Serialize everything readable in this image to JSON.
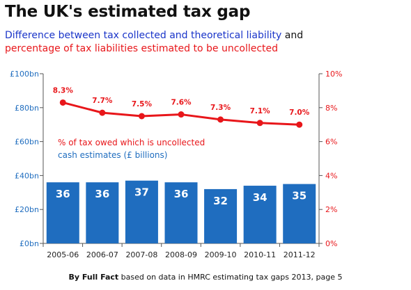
{
  "header": {
    "title": "The UK's estimated tax gap",
    "subtitle_part1": "Difference between tax collected and theoretical liability",
    "subtitle_and": " and",
    "subtitle_part2": "percentage of tax liabilities estimated to be uncollected"
  },
  "footer": {
    "source_bold": "By Full Fact",
    "source_rest": " based on data in HMRC estimating tax gaps 2013, page 5"
  },
  "colors": {
    "bar": "#1f6dbf",
    "line": "#e8161a",
    "left_axis_text": "#1f6dbf",
    "right_axis_text": "#e8161a",
    "subtitle_blue": "#1a35c9"
  },
  "chart_data": {
    "type": "bar+line",
    "categories": [
      "2005-06",
      "2006-07",
      "2007-08",
      "2008-09",
      "2009-10",
      "2010-11",
      "2011-12"
    ],
    "series": [
      {
        "name": "cash estimates (£ billions)",
        "type": "bar",
        "axis": "left",
        "values": [
          36,
          36,
          37,
          36,
          32,
          34,
          35
        ],
        "labels": [
          "36",
          "36",
          "37",
          "36",
          "32",
          "34",
          "35"
        ]
      },
      {
        "name": "% of tax owed which is uncollected",
        "type": "line",
        "axis": "right",
        "values": [
          8.3,
          7.7,
          7.5,
          7.6,
          7.3,
          7.1,
          7.0
        ],
        "labels": [
          "8.3%",
          "7.7%",
          "7.5%",
          "7.6%",
          "7.3%",
          "7.1%",
          "7.0%"
        ]
      }
    ],
    "left_axis": {
      "ylim": [
        0,
        100
      ],
      "ticks": [
        0,
        20,
        40,
        60,
        80,
        100
      ],
      "tick_labels": [
        "£0bn",
        "£20bn",
        "£40bn",
        "£60bn",
        "£80bn",
        "£100bn"
      ]
    },
    "right_axis": {
      "ylim": [
        0,
        10
      ],
      "ticks": [
        0,
        2,
        4,
        6,
        8,
        10
      ],
      "tick_labels": [
        "0%",
        "2%",
        "4%",
        "6%",
        "8%",
        "10%"
      ]
    },
    "grid": false
  }
}
